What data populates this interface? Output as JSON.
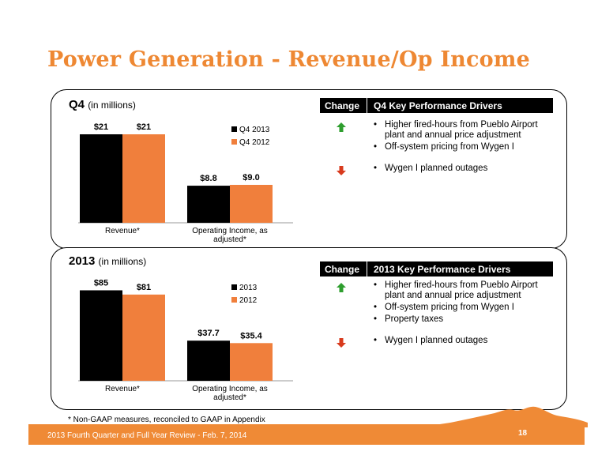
{
  "title": "Power Generation - Revenue/Op Income",
  "footnote": "* Non-GAAP measures, reconciled to GAAP in Appendix",
  "footer": {
    "text": "2013 Fourth Quarter and Full Year Review - Feb. 7, 2014",
    "page": "18"
  },
  "colors": {
    "accent": "#ee8833",
    "current": "#000000",
    "prior": "#f07f3c",
    "up": "#2e9e2e",
    "down": "#d83a1d"
  },
  "q4": {
    "heading": "Q4",
    "heading_sub": "(in millions)",
    "drivers_header": {
      "change": "Change",
      "title": "Q4 Key Performance Drivers"
    },
    "up_items": [
      "Higher fired-hours from Pueblo Airport plant and annual price adjustment",
      "Off-system pricing from Wygen I"
    ],
    "down_items": [
      "Wygen I planned outages"
    ],
    "up_icon": "green-up-arrow-icon",
    "down_icon": "red-down-arrow-icon"
  },
  "fy": {
    "heading": "2013",
    "heading_sub": "(in millions)",
    "drivers_header": {
      "change": "Change",
      "title": "2013 Key Performance Drivers"
    },
    "up_items": [
      "Higher fired-hours from Pueblo Airport plant and annual price adjustment",
      "Off-system pricing from Wygen I",
      "Property taxes"
    ],
    "down_items": [
      "Wygen I planned outages"
    ],
    "up_icon": "green-up-arrow-icon",
    "down_icon": "red-down-arrow-icon"
  },
  "chart_data": [
    {
      "type": "bar",
      "categories": [
        "Revenue*",
        "Operating Income, as adjusted*"
      ],
      "series": [
        {
          "name": "Q4 2013",
          "values": [
            21,
            8.8
          ],
          "labels": [
            "$21",
            "$8.8"
          ],
          "color": "#000000"
        },
        {
          "name": "Q4 2012",
          "values": [
            21,
            9.0
          ],
          "labels": [
            "$21",
            "$9.0"
          ],
          "color": "#f07f3c"
        }
      ],
      "ylim": [
        0,
        24
      ],
      "legend": "right",
      "grid": false
    },
    {
      "type": "bar",
      "categories": [
        "Revenue*",
        "Operating Income, as adjusted*"
      ],
      "series": [
        {
          "name": "2013",
          "values": [
            85,
            37.7
          ],
          "labels": [
            "$85",
            "$37.7"
          ],
          "color": "#000000"
        },
        {
          "name": "2012",
          "values": [
            81,
            35.4
          ],
          "labels": [
            "$81",
            "$35.4"
          ],
          "color": "#f07f3c"
        }
      ],
      "ylim": [
        0,
        95
      ],
      "legend": "right",
      "grid": false
    }
  ]
}
